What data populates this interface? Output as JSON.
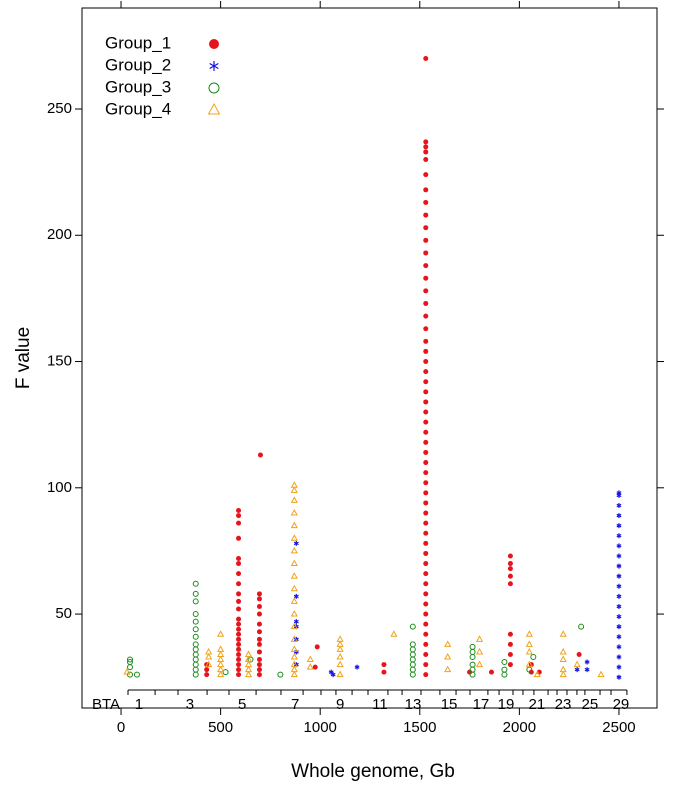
{
  "chart_data": {
    "type": "scatter",
    "xlabel": "Whole genome, Gb",
    "ylabel": "F value",
    "xlim": [
      -196,
      2691
    ],
    "ylim": [
      12.8,
      290
    ],
    "xticks": [
      0,
      500,
      1000,
      1500,
      2000,
      2500
    ],
    "yticks": [
      50,
      100,
      150,
      200,
      250
    ],
    "legend": "upper left",
    "bta_label": "BTA",
    "bta_ticks": [
      {
        "value": 90,
        "label": "1"
      },
      {
        "value": 346,
        "label": "3"
      },
      {
        "value": 608,
        "label": "5"
      },
      {
        "value": 874,
        "label": "7"
      },
      {
        "value": 1100,
        "label": "9"
      },
      {
        "value": 1300,
        "label": "11"
      },
      {
        "value": 1466,
        "label": "13"
      },
      {
        "value": 1647,
        "label": "15"
      },
      {
        "value": 1807,
        "label": "17"
      },
      {
        "value": 1933,
        "label": "19"
      },
      {
        "value": 2088,
        "label": "21"
      },
      {
        "value": 2219,
        "label": "23"
      },
      {
        "value": 2354,
        "label": "25"
      },
      {
        "value": 2510,
        "label": "29"
      }
    ],
    "bta_boundaries": [
      35,
      171,
      286,
      432,
      542,
      678,
      803,
      914,
      1004,
      1079,
      1160,
      1240,
      1340,
      1411,
      1506,
      1601,
      1682,
      1752,
      1842,
      1898,
      1968,
      2018,
      2073,
      2144,
      2189,
      2239,
      2289,
      2329,
      2405,
      2460,
      2540
    ],
    "series": [
      {
        "name": "Group_1",
        "color": "#e8141c",
        "marker": "filled-circle",
        "x": [
          430,
          430,
          430,
          590,
          590,
          590,
          590,
          590,
          590,
          590,
          590,
          590,
          590,
          590,
          590,
          590,
          590,
          590,
          590,
          590,
          590,
          590,
          590,
          590,
          590,
          590,
          695,
          695,
          695,
          695,
          695,
          695,
          695,
          695,
          695,
          695,
          695,
          695,
          695,
          700,
          975,
          985,
          1320,
          1320,
          1530,
          1530,
          1530,
          1530,
          1530,
          1530,
          1530,
          1530,
          1530,
          1530,
          1530,
          1530,
          1530,
          1530,
          1530,
          1530,
          1530,
          1530,
          1530,
          1530,
          1530,
          1530,
          1530,
          1530,
          1530,
          1530,
          1530,
          1530,
          1530,
          1530,
          1530,
          1530,
          1530,
          1530,
          1530,
          1530,
          1530,
          1530,
          1530,
          1530,
          1530,
          1530,
          1530,
          1530,
          1530,
          1530,
          1530,
          1530,
          1530,
          1530,
          1530,
          1530,
          1750,
          1860,
          1955,
          1955,
          1955,
          1955,
          1955,
          1955,
          1955,
          1955,
          1955,
          2060,
          2060,
          2100,
          2300
        ],
        "values": [
          26,
          28,
          30,
          26,
          28,
          30,
          32,
          34,
          36,
          38,
          40,
          42,
          44,
          46,
          48,
          52,
          55,
          58,
          62,
          66,
          70,
          72,
          80,
          86,
          89,
          91,
          26,
          28,
          30,
          32,
          35,
          38,
          40,
          43,
          46,
          50,
          53,
          56,
          58,
          113,
          29,
          37,
          27,
          30,
          26,
          30,
          34,
          38,
          42,
          46,
          50,
          54,
          58,
          62,
          66,
          70,
          74,
          78,
          82,
          86,
          90,
          94,
          98,
          102,
          106,
          110,
          114,
          118,
          122,
          126,
          130,
          134,
          138,
          142,
          146,
          150,
          154,
          158,
          163,
          168,
          173,
          178,
          183,
          188,
          193,
          198,
          203,
          208,
          213,
          218,
          224,
          230,
          233,
          235,
          237,
          270,
          27,
          27,
          30,
          34,
          38,
          42,
          62,
          65,
          68,
          70,
          73,
          27,
          30,
          27,
          34
        ]
      },
      {
        "name": "Group_2",
        "color": "#1414e6",
        "marker": "asterisk",
        "x": [
          2500,
          2500,
          2500,
          2500,
          2500,
          2500,
          2500,
          2500,
          2500,
          2500,
          2500,
          2500,
          2500,
          2500,
          2500,
          2500,
          2500,
          2500,
          2500,
          2500,
          880,
          880,
          880,
          880,
          880,
          880,
          880,
          1055,
          1065,
          1185,
          2340,
          2340,
          2290
        ],
        "values": [
          25,
          29,
          33,
          37,
          41,
          45,
          49,
          53,
          57,
          61,
          65,
          69,
          73,
          77,
          81,
          85,
          89,
          93,
          97,
          98,
          30,
          35,
          40,
          45,
          47,
          57,
          78,
          27,
          26,
          29,
          28,
          31,
          28
        ]
      },
      {
        "name": "Group_3",
        "color": "#1a8a1a",
        "marker": "open-circle",
        "x": [
          45,
          45,
          45,
          45,
          80,
          375,
          375,
          375,
          375,
          375,
          375,
          375,
          375,
          375,
          375,
          375,
          375,
          375,
          375,
          525,
          650,
          800,
          1465,
          1465,
          1465,
          1465,
          1465,
          1465,
          1465,
          1465,
          1765,
          1765,
          1765,
          1765,
          1765,
          1765,
          1925,
          1925,
          1925,
          2070,
          2050,
          2310
        ],
        "values": [
          26,
          29,
          31,
          32,
          26,
          26,
          28,
          30,
          32,
          34,
          36,
          38,
          41,
          44,
          47,
          50,
          55,
          58,
          62,
          27,
          32,
          26,
          26,
          28,
          30,
          32,
          34,
          36,
          38,
          45,
          26,
          28,
          30,
          33,
          35,
          37,
          26,
          28,
          31,
          33,
          28,
          45
        ]
      },
      {
        "name": "Group_4",
        "color": "#f0a318",
        "marker": "triangle",
        "x": [
          30,
          440,
          440,
          440,
          500,
          500,
          500,
          500,
          500,
          500,
          500,
          640,
          640,
          640,
          640,
          640,
          870,
          870,
          870,
          870,
          870,
          870,
          870,
          870,
          870,
          870,
          870,
          870,
          870,
          870,
          870,
          870,
          870,
          870,
          870,
          950,
          950,
          1100,
          1100,
          1100,
          1100,
          1100,
          1100,
          1370,
          1640,
          1640,
          1640,
          1800,
          1800,
          1800,
          2050,
          2050,
          2050,
          2050,
          2220,
          2220,
          2220,
          2220,
          2220,
          2290,
          2410,
          2090
        ],
        "values": [
          27,
          30,
          33,
          35,
          26,
          28,
          30,
          32,
          34,
          36,
          42,
          26,
          28,
          30,
          32,
          34,
          26,
          28,
          30,
          33,
          36,
          40,
          45,
          50,
          55,
          60,
          65,
          70,
          75,
          80,
          85,
          90,
          95,
          99,
          101,
          29,
          32,
          26,
          30,
          33,
          36,
          38,
          40,
          42,
          28,
          33,
          38,
          30,
          35,
          40,
          30,
          35,
          38,
          42,
          26,
          28,
          32,
          35,
          42,
          30,
          26,
          26
        ]
      }
    ]
  }
}
